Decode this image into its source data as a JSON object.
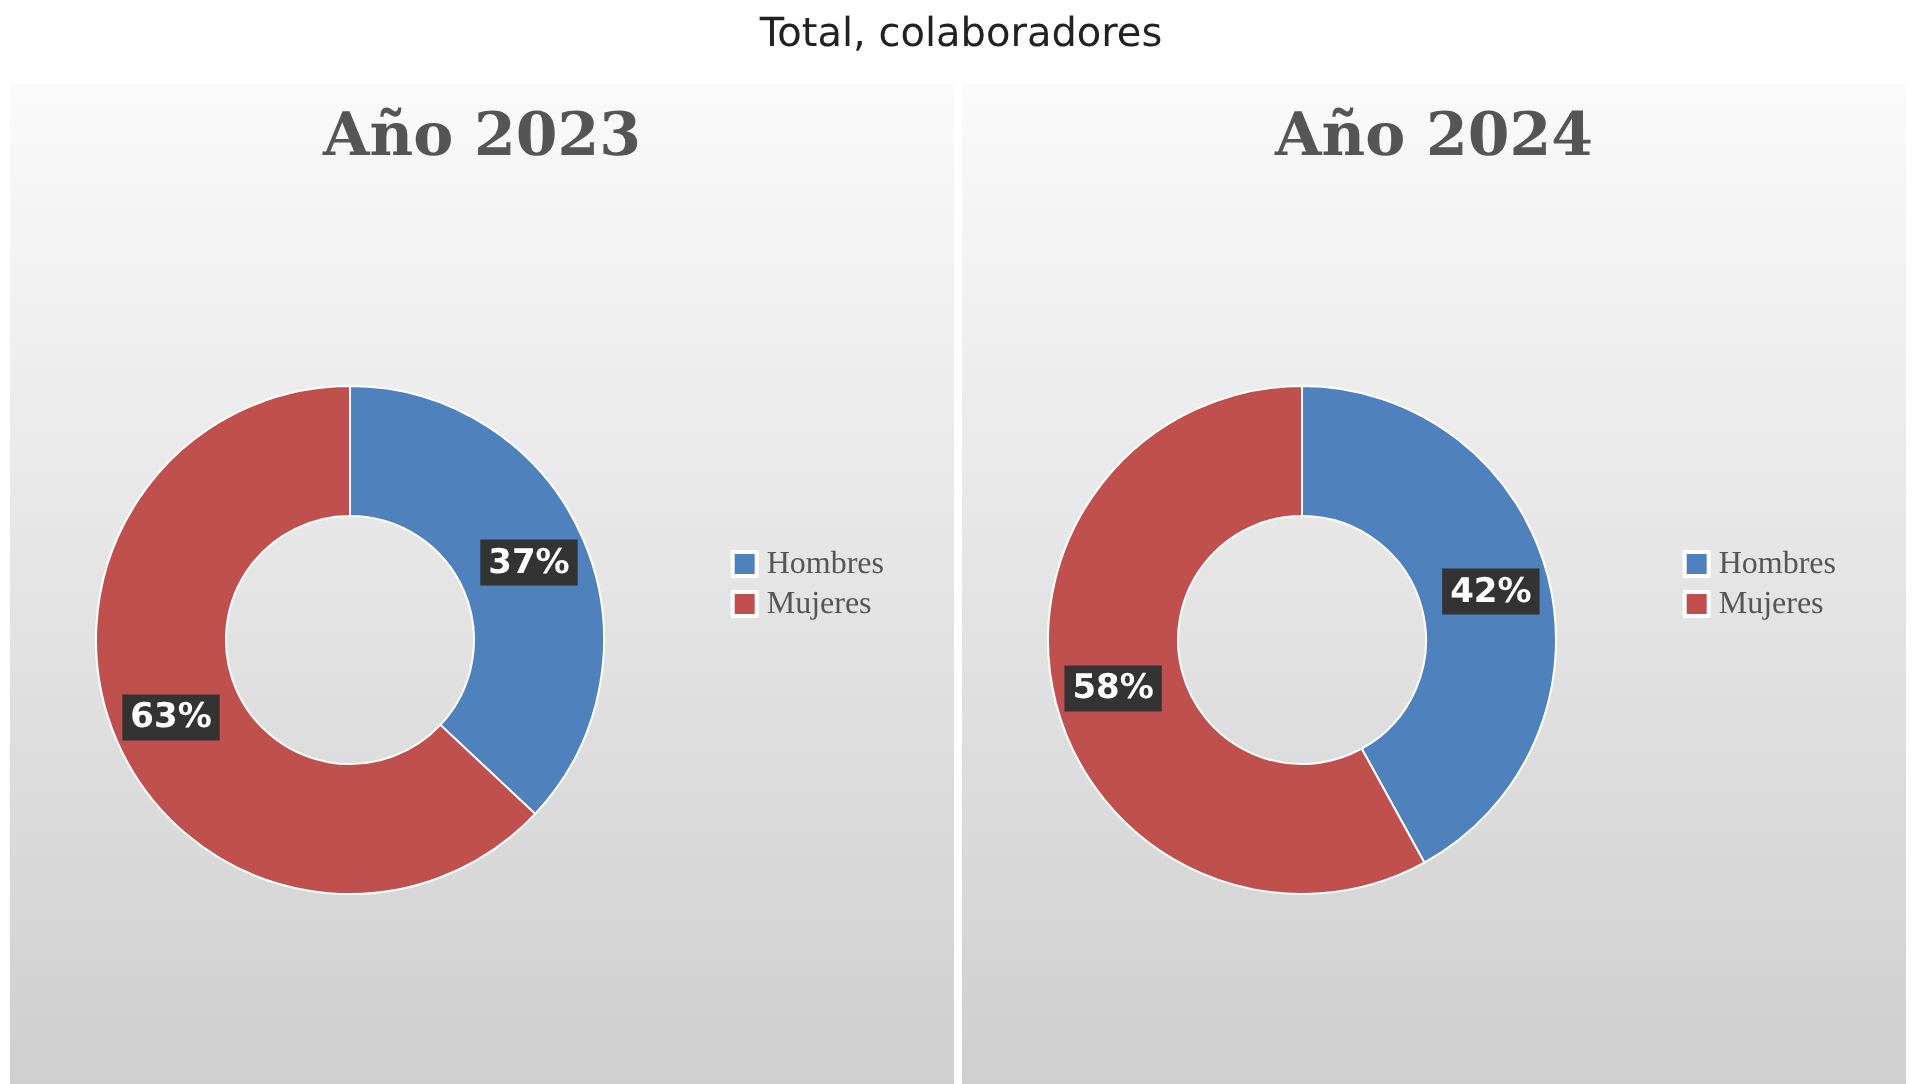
{
  "chart_data": [
    {
      "type": "donut",
      "title": "Año 2023",
      "annotations": [
        "Total, colaboradores"
      ],
      "categories": [
        "Hombres",
        "Mujeres"
      ],
      "values": [
        37,
        63
      ],
      "colors": [
        "#4f81bd",
        "#c0504d"
      ],
      "value_labels": [
        "37%",
        "63%"
      ],
      "legend": "right"
    },
    {
      "type": "donut",
      "title": "Año 2024",
      "categories": [
        "Hombres",
        "Mujeres"
      ],
      "values": [
        42,
        58
      ],
      "colors": [
        "#4f81bd",
        "#c0504d"
      ],
      "value_labels": [
        "42%",
        "58%"
      ],
      "legend": "right"
    }
  ]
}
